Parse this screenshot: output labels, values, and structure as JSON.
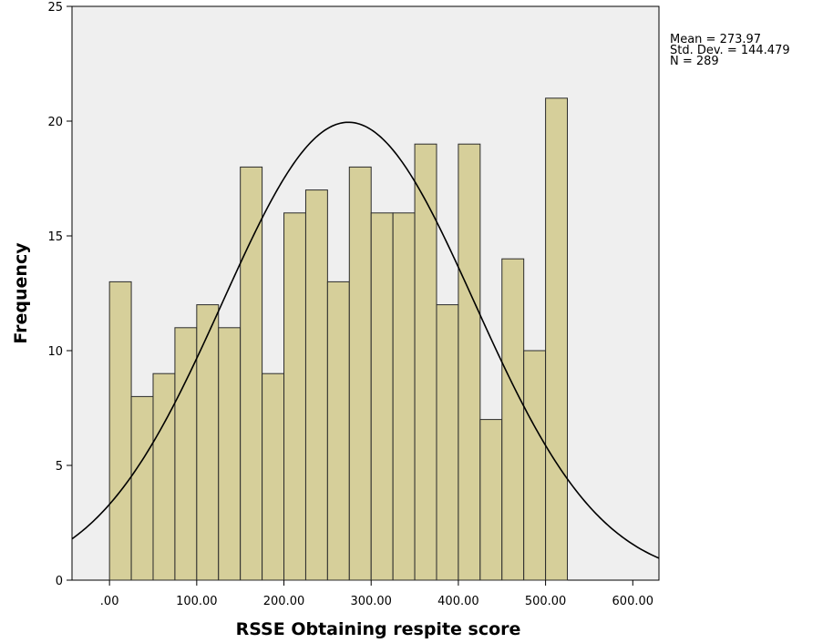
{
  "chart_data": {
    "type": "bar",
    "title": "",
    "xlabel": "RSSE Obtaining respite score",
    "ylabel": "Frequency",
    "xlim": [
      -43,
      630
    ],
    "ylim": [
      0,
      25
    ],
    "x_ticks": [
      0,
      100,
      200,
      300,
      400,
      500,
      600
    ],
    "x_tick_labels": [
      ".00",
      "100.00",
      "200.00",
      "300.00",
      "400.00",
      "500.00",
      "600.00"
    ],
    "y_ticks": [
      0,
      5,
      10,
      15,
      20,
      25
    ],
    "y_tick_labels": [
      "0",
      "5",
      "10",
      "15",
      "20",
      "25"
    ],
    "bin_width": 25,
    "bin_start": 0,
    "values": [
      13,
      8,
      9,
      11,
      12,
      11,
      18,
      9,
      16,
      17,
      13,
      18,
      16,
      16,
      19,
      12,
      19,
      7,
      14,
      10,
      21
    ],
    "normal_curve": {
      "mean": 273.97,
      "std_dev": 144.479,
      "n": 289
    },
    "stats": {
      "mean": "Mean = 273.97",
      "std_dev": "Std. Dev. = 144.479",
      "n": "N = 289"
    },
    "colors": {
      "plot_background": "#efefef",
      "bar_fill": "#d6cf9a",
      "bar_stroke": "#2b2b2b",
      "curve": "#000000"
    },
    "grid": false,
    "legend": "none"
  }
}
